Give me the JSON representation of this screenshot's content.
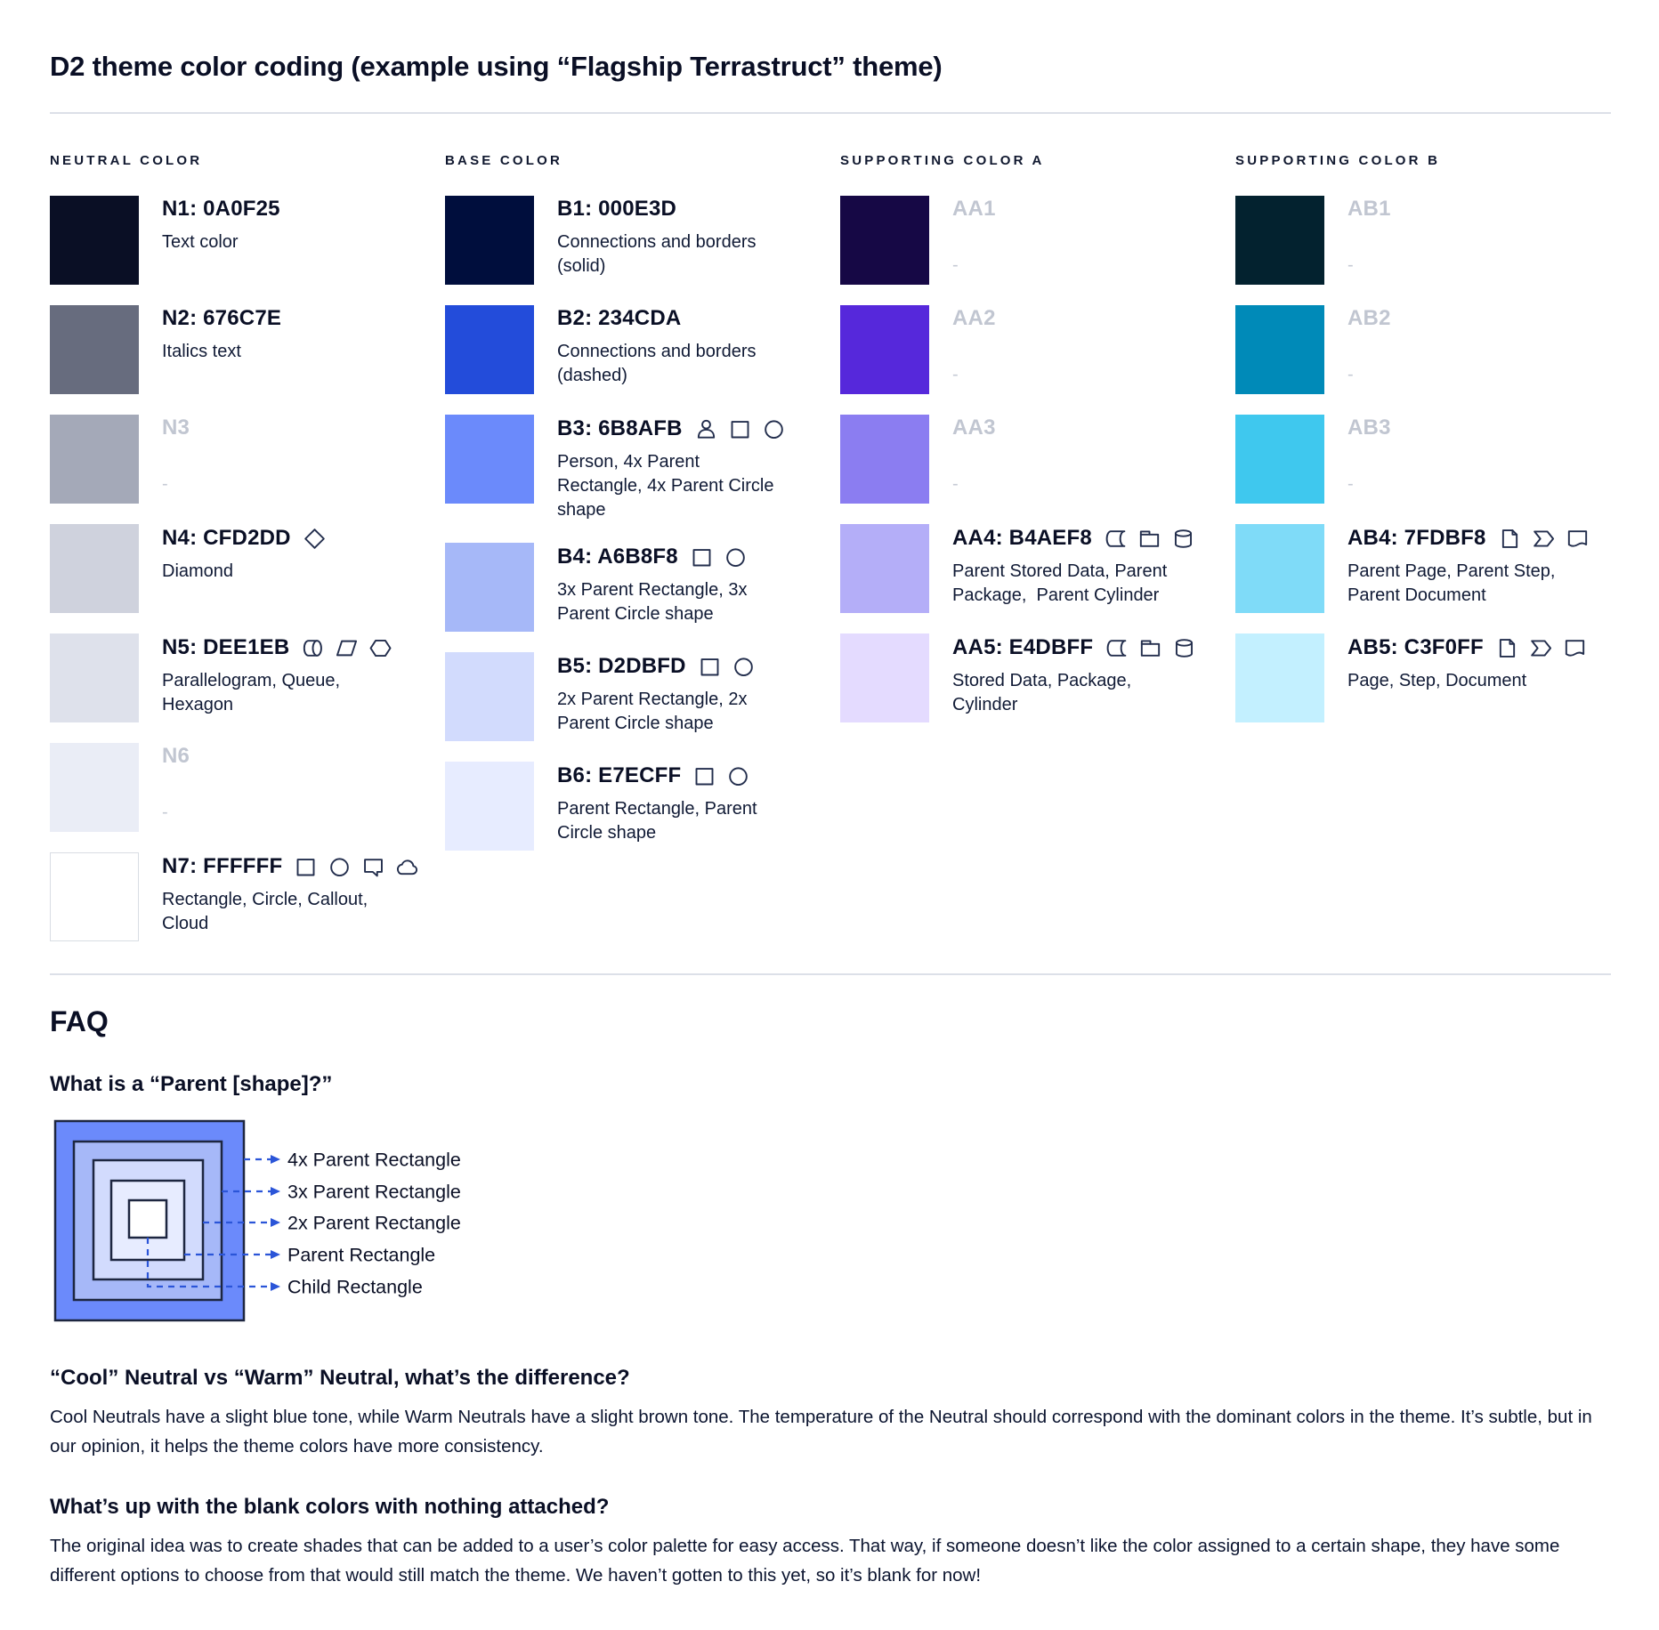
{
  "page": {
    "title": "D2 theme color coding (example using “Flagship Terrastruct” theme)"
  },
  "palette": {
    "columns": [
      {
        "header": "NEUTRAL COLOR",
        "items": [
          {
            "code": "N1: 0A0F25",
            "color": "#0A0F25",
            "desc": "Text color",
            "muted": false,
            "icons": []
          },
          {
            "code": "N2: 676C7E",
            "color": "#676C7E",
            "desc": "Italics text",
            "muted": false,
            "icons": []
          },
          {
            "code": "N3",
            "color": "#A4A9B8",
            "desc": "-",
            "muted": true,
            "icons": []
          },
          {
            "code": "N4: CFD2DD",
            "color": "#CFD2DD",
            "desc": "Diamond",
            "muted": false,
            "icons": [
              "diamond"
            ]
          },
          {
            "code": "N5: DEE1EB",
            "color": "#DEE1EB",
            "desc": "Parallelogram, Queue, Hexagon",
            "muted": false,
            "icons": [
              "queue",
              "parallelogram",
              "hexagon"
            ]
          },
          {
            "code": "N6",
            "color": "#EAEDF6",
            "desc": "-",
            "muted": true,
            "icons": []
          },
          {
            "code": "N7: FFFFFF",
            "color": "#FFFFFF",
            "desc": "Rectangle, Circle, Callout, Cloud",
            "muted": false,
            "border": true,
            "icons": [
              "rectangle",
              "circle",
              "callout",
              "cloud"
            ]
          }
        ]
      },
      {
        "header": "BASE COLOR",
        "items": [
          {
            "code": "B1: 000E3D",
            "color": "#000E3D",
            "desc": "Connections and borders (solid)",
            "muted": false,
            "icons": []
          },
          {
            "code": "B2: 234CDA",
            "color": "#234CDA",
            "desc": "Connections and borders (dashed)",
            "muted": false,
            "icons": []
          },
          {
            "code": "B3: 6B8AFB",
            "color": "#6B8AFB",
            "desc": "Person, 4x Parent Rectangle, 4x Parent Circle shape",
            "muted": false,
            "icons": [
              "person",
              "rectangle",
              "circle"
            ]
          },
          {
            "code": "B4: A6B8F8",
            "color": "#A6B8F8",
            "desc": "3x Parent Rectangle, 3x Parent Circle shape",
            "muted": false,
            "icons": [
              "rectangle",
              "circle"
            ]
          },
          {
            "code": "B5: D2DBFD",
            "color": "#D2DBFD",
            "desc": "2x Parent Rectangle, 2x Parent Circle shape",
            "muted": false,
            "icons": [
              "rectangle",
              "circle"
            ]
          },
          {
            "code": "B6: E7ECFF",
            "color": "#E7ECFF",
            "desc": "Parent Rectangle, Parent Circle shape",
            "muted": false,
            "icons": [
              "rectangle",
              "circle"
            ]
          }
        ]
      },
      {
        "header": "SUPPORTING COLOR A",
        "items": [
          {
            "code": "AA1",
            "color": "#160845",
            "desc": "-",
            "muted": true,
            "icons": []
          },
          {
            "code": "AA2",
            "color": "#5628DB",
            "desc": "-",
            "muted": true,
            "icons": []
          },
          {
            "code": "AA3",
            "color": "#8B7DF1",
            "desc": "-",
            "muted": true,
            "icons": []
          },
          {
            "code": "AA4: B4AEF8",
            "color": "#B4AEF8",
            "desc": "Parent Stored Data, Parent Package,  Parent Cylinder",
            "muted": false,
            "icons": [
              "stored-data",
              "package",
              "cylinder"
            ]
          },
          {
            "code": "AA5: E4DBFF",
            "color": "#E4DBFF",
            "desc": "Stored Data, Package, Cylinder",
            "muted": false,
            "icons": [
              "stored-data",
              "package",
              "cylinder"
            ]
          }
        ]
      },
      {
        "header": "SUPPORTING COLOR B",
        "items": [
          {
            "code": "AB1",
            "color": "#03222F",
            "desc": "-",
            "muted": true,
            "icons": []
          },
          {
            "code": "AB2",
            "color": "#008AB8",
            "desc": "-",
            "muted": true,
            "icons": []
          },
          {
            "code": "AB3",
            "color": "#3FC8EE",
            "desc": "-",
            "muted": true,
            "icons": []
          },
          {
            "code": "AB4: 7FDBF8",
            "color": "#7FDBF8",
            "desc": "Parent Page, Parent Step, Parent Document",
            "muted": false,
            "icons": [
              "page",
              "step",
              "document"
            ]
          },
          {
            "code": "AB5: C3F0FF",
            "color": "#C3F0FF",
            "desc": "Page, Step, Document",
            "muted": false,
            "icons": [
              "page",
              "step",
              "document"
            ]
          }
        ]
      }
    ]
  },
  "faq": {
    "heading": "FAQ",
    "q1": {
      "question": "What is a “Parent [shape]?”",
      "diagram": {
        "layer_colors": [
          "#6B8AFB",
          "#A6B8F8",
          "#D2DBFD",
          "#E7ECFF",
          "#FFFFFF"
        ],
        "labels": [
          "4x Parent Rectangle",
          "3x Parent Rectangle",
          "2x Parent Rectangle",
          "Parent Rectangle",
          "Child Rectangle"
        ],
        "leader_color": "#2B55D8",
        "border_color": "#1D2640"
      }
    },
    "q2": {
      "question": "“Cool” Neutral vs “Warm” Neutral, what’s the difference?",
      "answer": "Cool Neutrals have a slight blue tone, while Warm Neutrals have a slight brown tone. The temperature of the Neutral should correspond with the dominant colors in the theme. It’s subtle, but in our opinion, it helps the theme colors have more consistency."
    },
    "q3": {
      "question": "What’s up with the blank colors with nothing attached?",
      "answer": "The original idea was to create shades that can be added to a user’s color palette for easy access. That way, if someone doesn’t like the color assigned to a certain shape, they have some different options to choose from that would still match the theme. We haven’t gotten to this yet, so it’s blank for now!"
    }
  }
}
